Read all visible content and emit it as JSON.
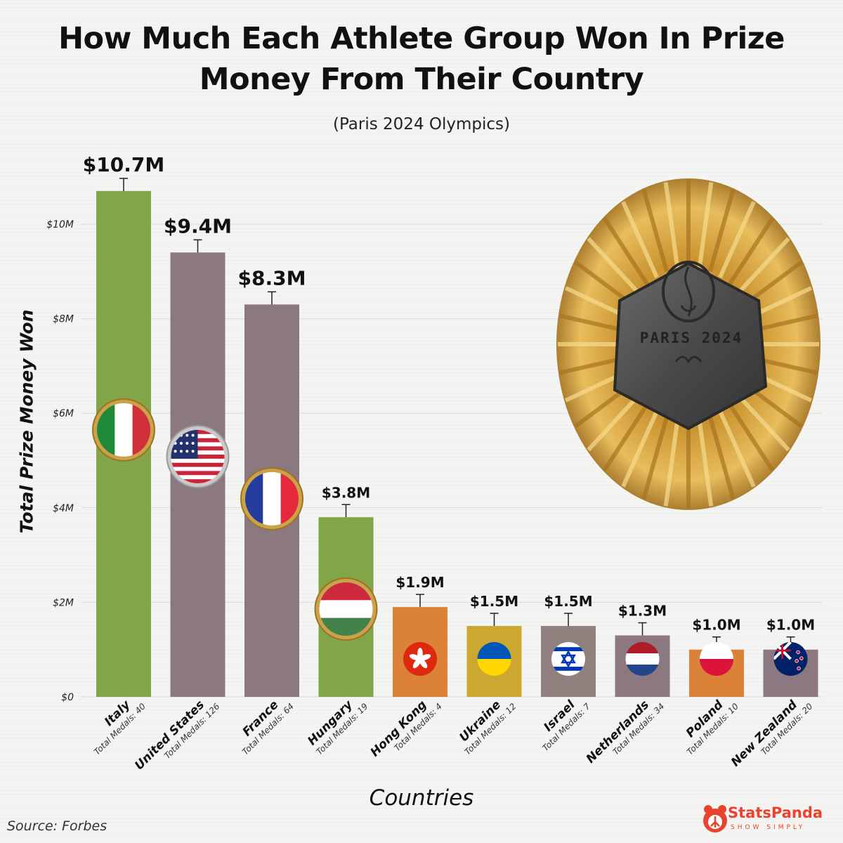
{
  "header": {
    "title_line1": "How Much Each Athlete Group Won In Prize",
    "title_line2": "Money From Their Country",
    "subtitle": "(Paris 2024 Olympics)"
  },
  "footer": {
    "source": "Source: Forbes",
    "brand_name": "StatsPanda",
    "brand_tagline": "SHOW SIMPLY"
  },
  "medal": {
    "text": "PARIS 2024"
  },
  "chart_data": {
    "type": "bar",
    "title": "How Much Each Athlete Group Won In Prize Money From Their Country",
    "subtitle": "(Paris 2024 Olympics)",
    "xlabel": "Countries",
    "ylabel": "Total Prize Money Won",
    "ylim": [
      0,
      12
    ],
    "y_unit": "millions USD",
    "yticks": [
      {
        "value": 0,
        "label": "$0"
      },
      {
        "value": 2,
        "label": "$2M"
      },
      {
        "value": 4,
        "label": "$4M"
      },
      {
        "value": 6,
        "label": "$6M"
      },
      {
        "value": 8,
        "label": "$8M"
      },
      {
        "value": 10,
        "label": "$10M"
      }
    ],
    "grid": true,
    "categories": [
      "Italy",
      "United States",
      "France",
      "Hungary",
      "Hong Kong",
      "Ukraine",
      "Israel",
      "Netherlands",
      "Poland",
      "New Zealand"
    ],
    "values": [
      10.7,
      9.4,
      8.3,
      3.8,
      1.9,
      1.5,
      1.5,
      1.3,
      1.0,
      1.0
    ],
    "value_labels": [
      "$10.7M",
      "$9.4M",
      "$8.3M",
      "$3.8M",
      "$1.9M",
      "$1.5M",
      "$1.5M",
      "$1.3M",
      "$1.0M",
      "$1.0M"
    ],
    "medal_labels": [
      "Total Medals: 40",
      "Total Medals: 126",
      "Total Medals: 64",
      "Total Medals: 19",
      "Total Medals: 4",
      "Total Medals: 12",
      "Total Medals: 7",
      "Total Medals: 34",
      "Total Medals: 10",
      "Total Medals: 20"
    ],
    "total_medals": [
      40,
      126,
      64,
      19,
      4,
      12,
      7,
      34,
      10,
      20
    ],
    "bar_colors": [
      "#7aa03c",
      "#857079",
      "#857079",
      "#7aa03c",
      "#d97a2c",
      "#c9a324",
      "#8a7a78",
      "#857079",
      "#d97a2c",
      "#857079"
    ],
    "flags": [
      "italy-flag-icon",
      "usa-flag-icon",
      "france-flag-icon",
      "hungary-flag-icon",
      "hong-kong-flag-icon",
      "ukraine-flag-icon",
      "israel-flag-icon",
      "netherlands-flag-icon",
      "poland-flag-icon",
      "new-zealand-flag-icon"
    ]
  }
}
